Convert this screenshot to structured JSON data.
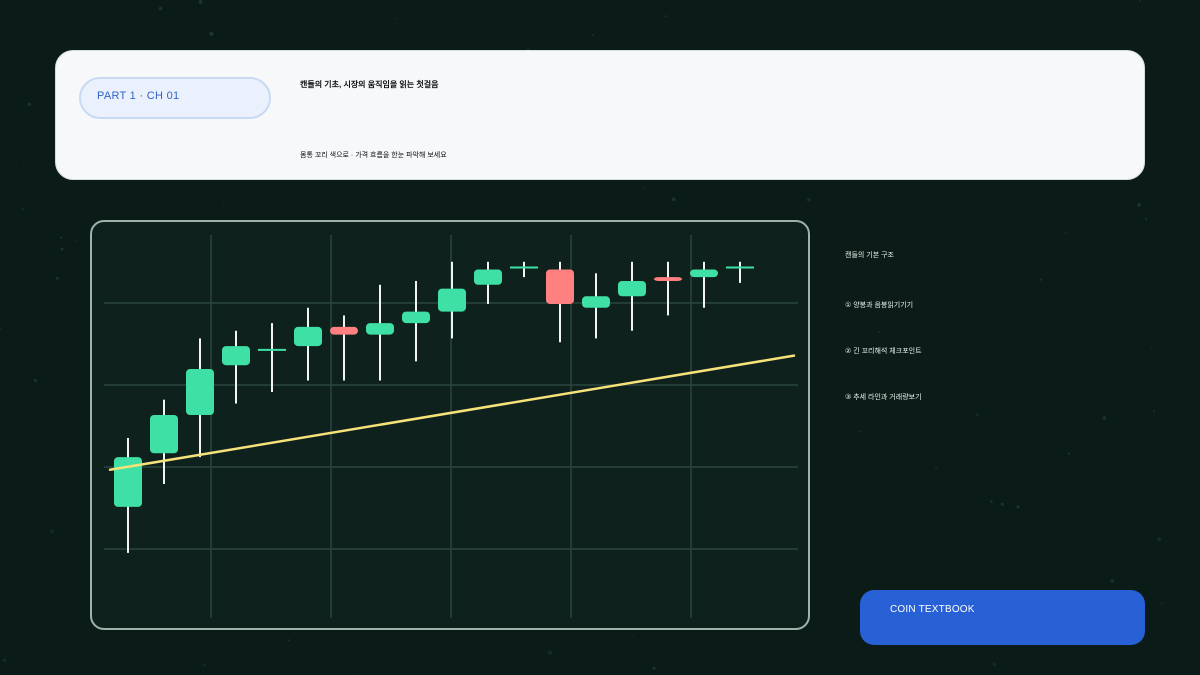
{
  "header": {
    "chapter_label": "PART 1 · CH 01",
    "title": "캔들의 기초, 시장의 움직임을 읽는 첫걸음",
    "subtitle": "몸통 꼬리 색으로 · 가격 흐름을 한눈 파악해 보세요"
  },
  "notes": [
    "캔들의 기본 구조",
    "① 양봉과 음봉읽기기기",
    "② 긴 꼬리해석 체크포인트",
    "③ 추세 라인과 거래량보기"
  ],
  "cta_label": "COIN TEXTBOOK",
  "colors": {
    "bullish": "#3fe0a5",
    "bearish": "#ff8080",
    "trendline": "#f5e27a",
    "wick": "#f2f2f2"
  },
  "chart_data": {
    "type": "candlestick",
    "grid": true,
    "ylim": [
      0,
      100
    ],
    "candles": [
      {
        "open": 29,
        "close": 42,
        "high": 47,
        "low": 17
      },
      {
        "open": 43,
        "close": 53,
        "high": 57,
        "low": 35
      },
      {
        "open": 53,
        "close": 65,
        "high": 73,
        "low": 42
      },
      {
        "open": 66,
        "close": 71,
        "high": 75,
        "low": 56
      },
      {
        "open": 69.5,
        "close": 70,
        "high": 77,
        "low": 59
      },
      {
        "open": 71,
        "close": 76,
        "high": 81,
        "low": 62
      },
      {
        "open": 76,
        "close": 74,
        "high": 79,
        "low": 62
      },
      {
        "open": 74,
        "close": 77,
        "high": 87,
        "low": 62
      },
      {
        "open": 77,
        "close": 80,
        "high": 88,
        "low": 67
      },
      {
        "open": 80,
        "close": 86,
        "high": 93,
        "low": 73
      },
      {
        "open": 87,
        "close": 91,
        "high": 93,
        "low": 82
      },
      {
        "open": 91.5,
        "close": 91.5,
        "high": 93,
        "low": 89
      },
      {
        "open": 91,
        "close": 82,
        "high": 93,
        "low": 72
      },
      {
        "open": 81,
        "close": 84,
        "high": 90,
        "low": 73
      },
      {
        "open": 84,
        "close": 88,
        "high": 93,
        "low": 75
      },
      {
        "open": 89,
        "close": 88,
        "high": 93,
        "low": 79
      },
      {
        "open": 89,
        "close": 91,
        "high": 93,
        "low": 81
      },
      {
        "open": 91.5,
        "close": 91.5,
        "high": 93,
        "low": 87.5
      }
    ],
    "trendline": [
      {
        "index": -0.5,
        "value": 38.7
      },
      {
        "index": 18.5,
        "value": 68.5
      }
    ]
  }
}
